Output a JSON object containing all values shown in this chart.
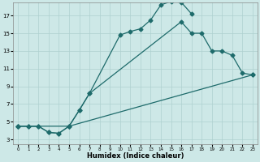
{
  "xlabel": "Humidex (Indice chaleur)",
  "xlim": [
    -0.5,
    23.5
  ],
  "ylim": [
    2.5,
    18.5
  ],
  "xticks": [
    0,
    1,
    2,
    3,
    4,
    5,
    6,
    7,
    8,
    9,
    10,
    11,
    12,
    13,
    14,
    15,
    16,
    17,
    18,
    19,
    20,
    21,
    22,
    23
  ],
  "yticks": [
    3,
    5,
    7,
    9,
    11,
    13,
    15,
    17
  ],
  "bg_color": "#cde8e7",
  "grid_color": "#aed0cf",
  "line_color": "#1e6b6b",
  "line1_x": [
    0,
    1,
    2,
    3,
    4,
    5,
    6,
    7,
    10,
    11,
    12,
    13,
    14,
    15,
    16,
    17
  ],
  "line1_y": [
    4.5,
    4.5,
    4.5,
    3.8,
    3.7,
    4.5,
    6.3,
    8.2,
    14.8,
    15.2,
    15.5,
    16.5,
    18.2,
    18.6,
    18.5,
    17.2
  ],
  "line2_x": [
    0,
    1,
    2,
    3,
    4,
    5,
    6,
    7,
    16,
    17,
    18,
    19,
    20,
    21,
    22,
    23
  ],
  "line2_y": [
    4.5,
    4.5,
    4.5,
    3.8,
    3.7,
    4.5,
    6.3,
    8.2,
    16.3,
    15.0,
    15.0,
    13.0,
    13.0,
    12.5,
    10.5,
    10.3
  ],
  "line3_x": [
    0,
    5,
    23
  ],
  "line3_y": [
    4.5,
    4.5,
    10.3
  ],
  "marker_style": "D",
  "marker_size": 2.5,
  "linewidth": 0.9
}
